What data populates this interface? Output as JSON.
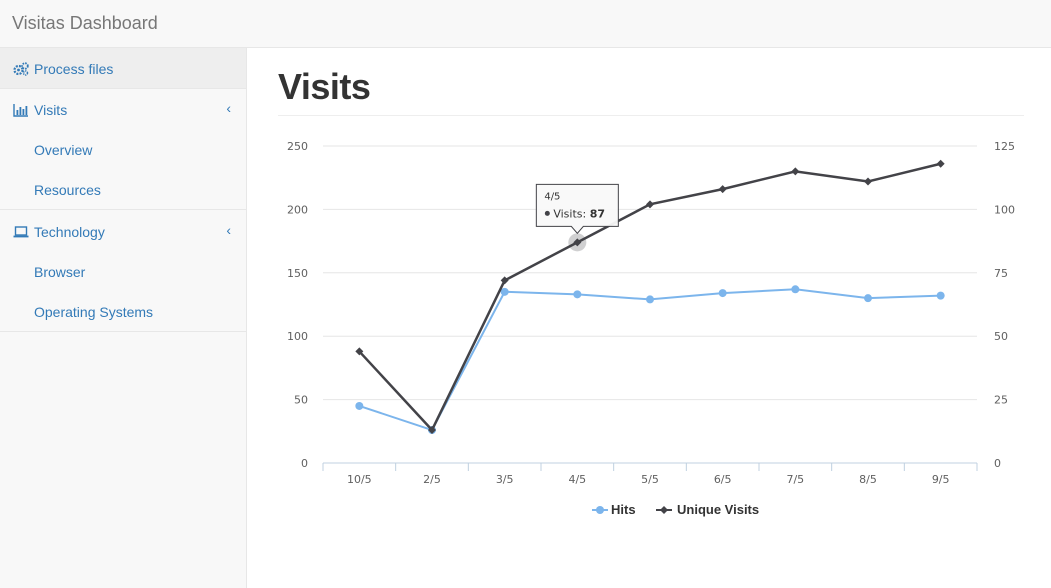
{
  "header": {
    "title": "Visitas Dashboard"
  },
  "sidebar": {
    "items": [
      {
        "label": "Process files",
        "icon": "gears-icon"
      },
      {
        "label": "Visits",
        "icon": "bar-chart-icon",
        "chevron": "‹",
        "children": [
          {
            "label": "Overview"
          },
          {
            "label": "Resources"
          }
        ]
      },
      {
        "label": "Technology",
        "icon": "laptop-icon",
        "chevron": "‹",
        "children": [
          {
            "label": "Browser"
          },
          {
            "label": "Operating Systems"
          }
        ]
      }
    ]
  },
  "main": {
    "title": "Visits"
  },
  "colors": {
    "hits": "#7cb5ec",
    "unique": "#434348",
    "link": "#337ab7"
  },
  "chart_data": {
    "type": "line",
    "categories": [
      "10/5",
      "2/5",
      "3/5",
      "4/5",
      "5/5",
      "6/5",
      "7/5",
      "8/5",
      "9/5"
    ],
    "series": [
      {
        "name": "Hits",
        "axis": "left",
        "values": [
          45,
          26,
          135,
          133,
          129,
          134,
          137,
          130,
          132
        ]
      },
      {
        "name": "Unique Visits",
        "axis": "right",
        "values": [
          44,
          13,
          72,
          87,
          102,
          108,
          115,
          111,
          118
        ]
      }
    ],
    "y_left": {
      "ticks": [
        "0",
        "50",
        "100",
        "150",
        "200",
        "250"
      ],
      "range": [
        0,
        250
      ]
    },
    "y_right": {
      "ticks": [
        "0",
        "25",
        "50",
        "75",
        "100",
        "125"
      ],
      "range": [
        0,
        125
      ]
    },
    "legend_position": "bottom-center",
    "grid": true,
    "tooltip": {
      "title": "4/5",
      "label": "Visits:",
      "value": "87",
      "series": "Unique Visits",
      "category": "4/5"
    }
  }
}
